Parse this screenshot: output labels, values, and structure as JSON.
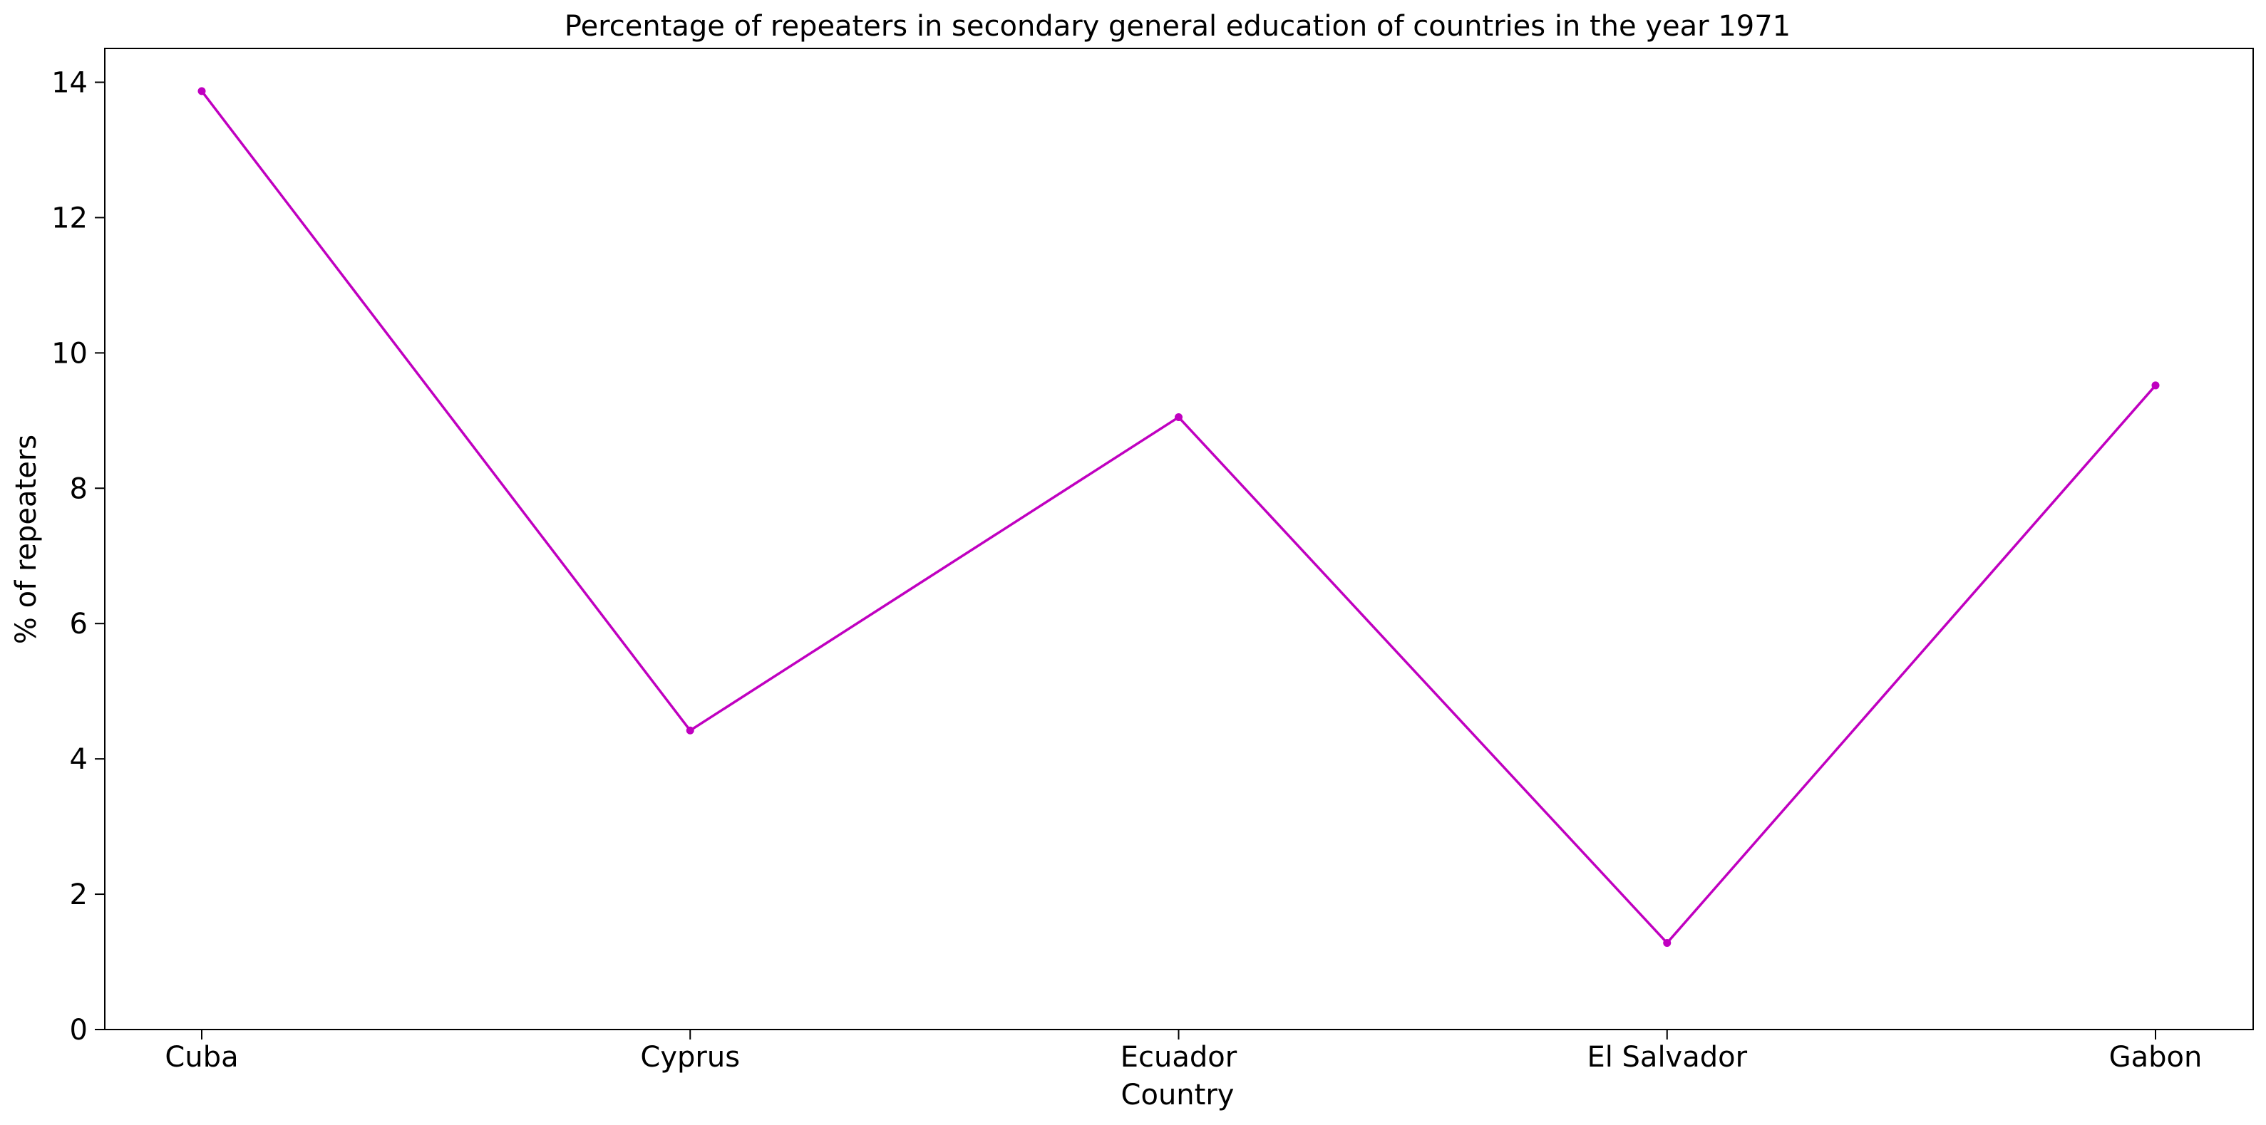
{
  "chart_data": {
    "type": "line",
    "title": "Percentage of repeaters in secondary general education of countries in the year 1971",
    "xlabel": "Country",
    "ylabel": "% of repeaters",
    "categories": [
      "Cuba",
      "Cyprus",
      "Ecuador",
      "El Salvador",
      "Gabon"
    ],
    "series": [
      {
        "values": [
          13.87,
          4.42,
          9.05,
          1.28,
          9.52
        ],
        "color": "#c000c0",
        "marker": "circle"
      }
    ],
    "ylim": [
      0,
      14.5
    ],
    "yticks": [
      0,
      2,
      4,
      6,
      8,
      10,
      12,
      14
    ],
    "grid": false,
    "legend": "none"
  }
}
